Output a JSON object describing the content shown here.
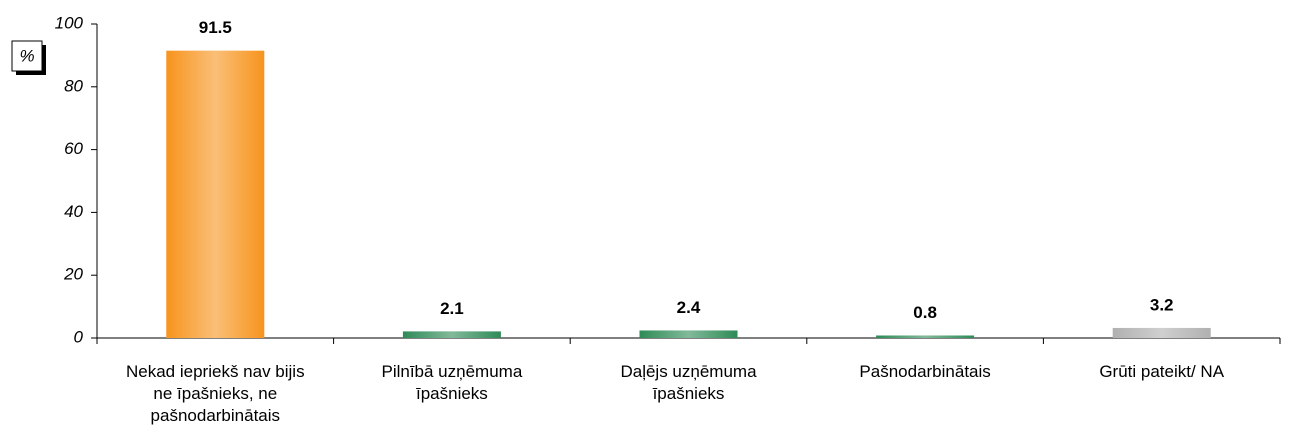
{
  "chart_data": {
    "type": "bar",
    "y_label": "%",
    "categories": [
      "Nekad iepriekš nav bijis\nne īpašnieks, ne\npašnodarbinātais",
      "Pilnībā uzņēmuma\nīpašnieks",
      "Daļējs uzņēmuma\nīpašnieks",
      "Pašnodarbinātais",
      "Grūti pateikt/ NA"
    ],
    "values": [
      91.5,
      2.1,
      2.4,
      0.8,
      3.2
    ],
    "colors": [
      "#f7941d",
      "#2e8b57",
      "#2e8b57",
      "#2e8b57",
      "#b0b0b0"
    ],
    "ylim": [
      0,
      100
    ],
    "yticks": [
      0,
      20,
      40,
      60,
      80,
      100
    ],
    "grid": false
  }
}
